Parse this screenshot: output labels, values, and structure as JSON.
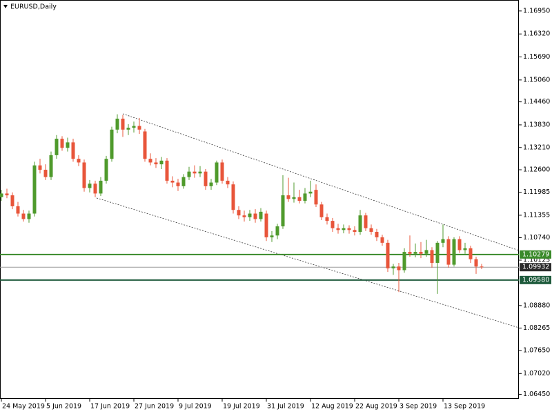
{
  "chart_data": {
    "type": "candlestick",
    "title": "EURUSD,Daily",
    "categories": [
      "24 May 2019",
      null,
      null,
      null,
      null,
      null,
      null,
      null,
      "5 Jun 2019",
      null,
      null,
      null,
      null,
      null,
      null,
      null,
      "17 Jun 2019",
      null,
      null,
      null,
      null,
      null,
      null,
      null,
      "27 Jun 2019",
      null,
      null,
      null,
      null,
      null,
      null,
      null,
      "9 Jul 2019",
      null,
      null,
      null,
      null,
      null,
      null,
      null,
      "19 Jul 2019",
      null,
      null,
      null,
      null,
      null,
      null,
      null,
      "31 Jul 2019",
      null,
      null,
      null,
      null,
      null,
      null,
      null,
      "12 Aug 2019",
      null,
      null,
      null,
      null,
      null,
      null,
      null,
      "22 Aug 2019",
      null,
      null,
      null,
      null,
      null,
      null,
      null,
      "3 Sep 2019",
      null,
      null,
      null,
      null,
      null,
      null,
      null,
      "13 Sep 2019",
      null,
      null,
      null,
      null,
      null,
      null,
      null
    ],
    "ohlc": [
      [
        1.1185,
        1.1205,
        1.1175,
        1.1195
      ],
      [
        1.1195,
        1.1208,
        1.1182,
        1.119
      ],
      [
        1.119,
        1.1198,
        1.1152,
        1.116
      ],
      [
        1.116,
        1.1172,
        1.1132,
        1.114
      ],
      [
        1.114,
        1.115,
        1.1118,
        1.1125
      ],
      [
        1.1125,
        1.1148,
        1.1115,
        1.114
      ],
      [
        1.114,
        1.1282,
        1.1132,
        1.1272
      ],
      [
        1.1272,
        1.129,
        1.125,
        1.126
      ],
      [
        1.126,
        1.1275,
        1.1232,
        1.124
      ],
      [
        1.124,
        1.131,
        1.1232,
        1.13
      ],
      [
        1.13,
        1.1355,
        1.129,
        1.1345
      ],
      [
        1.1345,
        1.1352,
        1.1312,
        1.132
      ],
      [
        1.132,
        1.1348,
        1.131,
        1.1335
      ],
      [
        1.1335,
        1.1345,
        1.1282,
        1.129
      ],
      [
        1.129,
        1.13,
        1.127,
        1.128
      ],
      [
        1.128,
        1.1288,
        1.12,
        1.121
      ],
      [
        1.121,
        1.1232,
        1.1198,
        1.1222
      ],
      [
        1.1222,
        1.123,
        1.1185,
        1.1195
      ],
      [
        1.1195,
        1.124,
        1.1188,
        1.123
      ],
      [
        1.123,
        1.1298,
        1.1222,
        1.129
      ],
      [
        1.129,
        1.1378,
        1.1282,
        1.137
      ],
      [
        1.137,
        1.1412,
        1.136,
        1.14
      ],
      [
        1.14,
        1.141,
        1.135,
        1.137
      ],
      [
        1.137,
        1.1385,
        1.1355,
        1.1375
      ],
      [
        1.1375,
        1.1392,
        1.1362,
        1.138
      ],
      [
        1.138,
        1.1402,
        1.1358,
        1.137
      ],
      [
        1.1365,
        1.1372,
        1.1282,
        1.129
      ],
      [
        1.129,
        1.1305,
        1.1272,
        1.128
      ],
      [
        1.128,
        1.1292,
        1.1265,
        1.1275
      ],
      [
        1.1275,
        1.1295,
        1.1262,
        1.1285
      ],
      [
        1.1285,
        1.1292,
        1.1222,
        1.123
      ],
      [
        1.123,
        1.1242,
        1.1212,
        1.1225
      ],
      [
        1.1225,
        1.1235,
        1.1202,
        1.1215
      ],
      [
        1.1215,
        1.1248,
        1.1208,
        1.124
      ],
      [
        1.124,
        1.1268,
        1.1232,
        1.1255
      ],
      [
        1.1255,
        1.1272,
        1.1238,
        1.125
      ],
      [
        1.125,
        1.127,
        1.124,
        1.1255
      ],
      [
        1.1255,
        1.1262,
        1.1205,
        1.1215
      ],
      [
        1.1215,
        1.1235,
        1.1205,
        1.1225
      ],
      [
        1.1225,
        1.1285,
        1.1218,
        1.128
      ],
      [
        1.128,
        1.1288,
        1.1222,
        1.123
      ],
      [
        1.123,
        1.124,
        1.121,
        1.122
      ],
      [
        1.122,
        1.1228,
        1.114,
        1.115
      ],
      [
        1.115,
        1.116,
        1.1125,
        1.1135
      ],
      [
        1.1135,
        1.1148,
        1.1118,
        1.113
      ],
      [
        1.113,
        1.115,
        1.112,
        1.114
      ],
      [
        1.114,
        1.1152,
        1.1115,
        1.1125
      ],
      [
        1.1125,
        1.1155,
        1.1118,
        1.1145
      ],
      [
        1.114,
        1.1148,
        1.1065,
        1.1075
      ],
      [
        1.1075,
        1.1092,
        1.1062,
        1.108
      ],
      [
        1.108,
        1.1112,
        1.107,
        1.1105
      ],
      [
        1.1105,
        1.1245,
        1.1098,
        1.119
      ],
      [
        1.119,
        1.1238,
        1.1172,
        1.118
      ],
      [
        1.118,
        1.1225,
        1.117,
        1.1185
      ],
      [
        1.1185,
        1.1205,
        1.1168,
        1.1175
      ],
      [
        1.1175,
        1.121,
        1.1168,
        1.1195
      ],
      [
        1.1195,
        1.123,
        1.1185,
        1.12
      ],
      [
        1.1205,
        1.122,
        1.1158,
        1.1165
      ],
      [
        1.1165,
        1.1172,
        1.1122,
        1.113
      ],
      [
        1.113,
        1.114,
        1.111,
        1.112
      ],
      [
        1.112,
        1.1128,
        1.109,
        1.11
      ],
      [
        1.11,
        1.1112,
        1.1085,
        1.1095
      ],
      [
        1.1095,
        1.111,
        1.1086,
        1.11
      ],
      [
        1.11,
        1.1108,
        1.1085,
        1.1095
      ],
      [
        1.1095,
        1.1105,
        1.108,
        1.109
      ],
      [
        1.109,
        1.115,
        1.1082,
        1.1135
      ],
      [
        1.1135,
        1.1142,
        1.1092,
        1.11
      ],
      [
        1.11,
        1.111,
        1.1082,
        1.109
      ],
      [
        1.109,
        1.1098,
        1.1065,
        1.1075
      ],
      [
        1.1075,
        1.1082,
        1.1052,
        1.106
      ],
      [
        1.106,
        1.1068,
        1.098,
        1.099
      ],
      [
        1.099,
        1.1002,
        1.0972,
        1.0995
      ],
      [
        1.0995,
        1.1005,
        1.0925,
        1.0985
      ],
      [
        1.0985,
        1.1045,
        1.0978,
        1.1035
      ],
      [
        1.1035,
        1.108,
        1.1022,
        1.103
      ],
      [
        1.103,
        1.1058,
        1.102,
        1.1035
      ],
      [
        1.1035,
        1.1062,
        1.1018,
        1.103
      ],
      [
        1.103,
        1.1068,
        1.1022,
        1.104
      ],
      [
        1.104,
        1.1048,
        1.0992,
        1.1005
      ],
      [
        1.1005,
        1.1065,
        1.092,
        1.106
      ],
      [
        1.106,
        1.111,
        1.1048,
        1.107
      ],
      [
        1.107,
        1.1078,
        1.0992,
        1.1
      ],
      [
        1.1,
        1.1075,
        1.0995,
        1.107
      ],
      [
        1.107,
        1.1078,
        1.1032,
        1.104
      ],
      [
        1.104,
        1.106,
        1.103,
        1.1045
      ],
      [
        1.1045,
        1.1052,
        1.1005,
        1.1015
      ],
      [
        1.1015,
        1.1022,
        1.0975,
        1.0995
      ],
      [
        1.0995,
        1.1002,
        1.0988,
        1.0993
      ]
    ],
    "bull_color": "#4f9a2c",
    "bear_color": "#e8553a",
    "ylim": [
      1.06326,
      1.1725
    ],
    "yticks": [
      {
        "value": 1.1695,
        "label": "1.16950"
      },
      {
        "value": 1.1632,
        "label": "1.16320"
      },
      {
        "value": 1.1569,
        "label": "1.15690"
      },
      {
        "value": 1.1506,
        "label": "1.15060"
      },
      {
        "value": 1.1446,
        "label": "1.14460"
      },
      {
        "value": 1.1383,
        "label": "1.13830"
      },
      {
        "value": 1.1321,
        "label": "1.13210"
      },
      {
        "value": 1.126,
        "label": "1.12600"
      },
      {
        "value": 1.11985,
        "label": "1.11985"
      },
      {
        "value": 1.11355,
        "label": "1.11355"
      },
      {
        "value": 1.1074,
        "label": "1.10740"
      },
      {
        "value": 1.10125,
        "label": "1.10125"
      },
      {
        "value": 1.0888,
        "label": "1.08880"
      },
      {
        "value": 1.08265,
        "label": "1.08265"
      },
      {
        "value": 1.0765,
        "label": "1.07650"
      },
      {
        "value": 1.0702,
        "label": "1.07020"
      },
      {
        "value": 1.0645,
        "label": "1.06450"
      }
    ],
    "levels": [
      {
        "value": 1.10279,
        "label": "1.10279",
        "color": "#3a8a2a"
      },
      {
        "value": 1.0958,
        "label": "1.09580",
        "color": "#1e5a3c"
      }
    ],
    "price": {
      "value": 1.09932,
      "label": "1.09932",
      "color": "#9a9a9a"
    },
    "trendlines": [
      [
        [
          22,
          1.14133
        ],
        [
          93.75,
          1.1039
        ]
      ],
      [
        [
          17.25,
          1.11827
        ],
        [
          93.75,
          1.08273
        ]
      ]
    ]
  }
}
